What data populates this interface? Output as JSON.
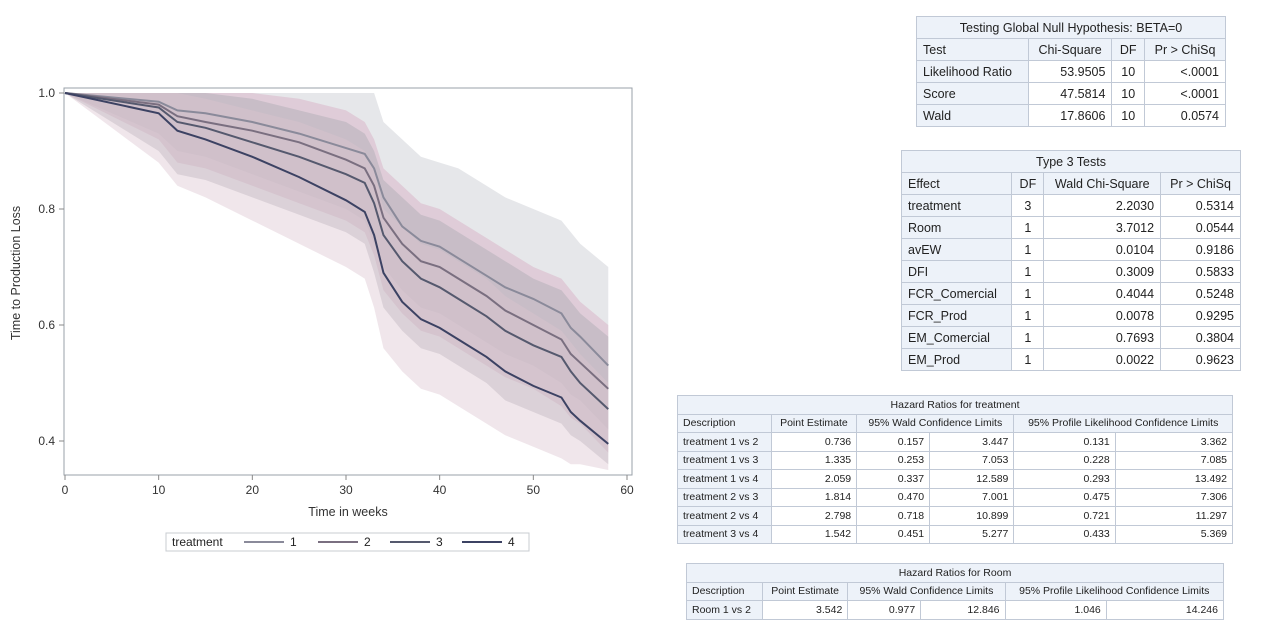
{
  "chart_data": {
    "type": "line",
    "title": "",
    "xlabel": "Time in weeks",
    "ylabel": "Time to Production Loss",
    "xlim": [
      0,
      60
    ],
    "ylim": [
      0.35,
      1.0
    ],
    "x_ticks": [
      "0",
      "10",
      "20",
      "30",
      "40",
      "50",
      "60"
    ],
    "y_ticks": [
      "0.4",
      "0.6",
      "0.8",
      "1.0"
    ],
    "legend_title": "treatment",
    "legend_position": "bottom",
    "x": [
      0,
      10,
      12,
      15,
      20,
      25,
      30,
      32,
      33,
      34,
      36,
      38,
      40,
      42,
      45,
      47,
      50,
      53,
      54,
      55,
      58
    ],
    "series": [
      {
        "name": "1",
        "values": [
          1.0,
          0.985,
          0.97,
          0.965,
          0.95,
          0.93,
          0.905,
          0.895,
          0.87,
          0.82,
          0.77,
          0.745,
          0.735,
          0.715,
          0.685,
          0.665,
          0.645,
          0.62,
          0.595,
          0.58,
          0.53
        ],
        "band": {
          "lower": [
            1.0,
            0.93,
            0.9,
            0.89,
            0.86,
            0.83,
            0.8,
            0.78,
            0.74,
            0.7,
            0.66,
            0.63,
            0.62,
            0.6,
            0.57,
            0.55,
            0.53,
            0.5,
            0.48,
            0.47,
            0.42
          ],
          "upper": [
            1.0,
            1.0,
            1.0,
            1.0,
            1.0,
            1.0,
            1.0,
            1.0,
            1.0,
            0.95,
            0.92,
            0.89,
            0.88,
            0.87,
            0.84,
            0.82,
            0.8,
            0.78,
            0.76,
            0.74,
            0.7
          ]
        }
      },
      {
        "name": "2",
        "values": [
          1.0,
          0.98,
          0.96,
          0.95,
          0.935,
          0.915,
          0.885,
          0.87,
          0.84,
          0.785,
          0.74,
          0.71,
          0.7,
          0.68,
          0.65,
          0.625,
          0.6,
          0.575,
          0.55,
          0.535,
          0.49
        ],
        "band": {
          "lower": [
            1.0,
            0.92,
            0.88,
            0.87,
            0.84,
            0.81,
            0.78,
            0.76,
            0.72,
            0.66,
            0.62,
            0.59,
            0.58,
            0.56,
            0.53,
            0.51,
            0.49,
            0.46,
            0.44,
            0.43,
            0.38
          ],
          "upper": [
            1.0,
            1.0,
            1.0,
            1.0,
            1.0,
            0.99,
            0.97,
            0.95,
            0.92,
            0.87,
            0.84,
            0.81,
            0.8,
            0.78,
            0.75,
            0.73,
            0.7,
            0.68,
            0.66,
            0.64,
            0.6
          ]
        }
      },
      {
        "name": "3",
        "values": [
          1.0,
          0.975,
          0.95,
          0.94,
          0.915,
          0.89,
          0.86,
          0.845,
          0.81,
          0.755,
          0.71,
          0.68,
          0.665,
          0.645,
          0.615,
          0.59,
          0.565,
          0.545,
          0.52,
          0.5,
          0.455
        ],
        "band": {
          "lower": [
            1.0,
            0.9,
            0.86,
            0.85,
            0.82,
            0.79,
            0.76,
            0.74,
            0.69,
            0.63,
            0.59,
            0.56,
            0.55,
            0.53,
            0.5,
            0.47,
            0.45,
            0.43,
            0.41,
            0.4,
            0.36
          ],
          "upper": [
            1.0,
            1.0,
            1.0,
            1.0,
            0.99,
            0.97,
            0.95,
            0.93,
            0.9,
            0.85,
            0.82,
            0.79,
            0.78,
            0.76,
            0.73,
            0.71,
            0.68,
            0.66,
            0.64,
            0.62,
            0.58
          ]
        }
      },
      {
        "name": "4",
        "values": [
          1.0,
          0.965,
          0.935,
          0.92,
          0.89,
          0.855,
          0.815,
          0.795,
          0.755,
          0.69,
          0.64,
          0.61,
          0.595,
          0.575,
          0.545,
          0.52,
          0.495,
          0.475,
          0.45,
          0.435,
          0.395
        ],
        "band": {
          "lower": [
            1.0,
            0.88,
            0.84,
            0.82,
            0.78,
            0.74,
            0.7,
            0.68,
            0.63,
            0.56,
            0.52,
            0.49,
            0.48,
            0.46,
            0.43,
            0.41,
            0.39,
            0.37,
            0.36,
            0.36,
            0.35
          ],
          "upper": [
            1.0,
            1.0,
            1.0,
            0.99,
            0.97,
            0.95,
            0.92,
            0.9,
            0.87,
            0.8,
            0.77,
            0.74,
            0.73,
            0.71,
            0.68,
            0.65,
            0.62,
            0.59,
            0.57,
            0.55,
            0.5
          ]
        }
      }
    ],
    "colors": {
      "lines": [
        "#8a8a9a",
        "#7a6f80",
        "#55596e",
        "#3c4263"
      ],
      "bands": [
        "#c4c6cc",
        "#d6a8bf",
        "#a9aab0",
        "#dcc4d0"
      ]
    }
  },
  "tables": {
    "global": {
      "caption": "Testing Global Null Hypothesis: BETA=0",
      "headers": [
        "Test",
        "Chi-Square",
        "DF",
        "Pr > ChiSq"
      ],
      "rows": [
        [
          "Likelihood Ratio",
          "53.9505",
          "10",
          "<.0001"
        ],
        [
          "Score",
          "47.5814",
          "10",
          "<.0001"
        ],
        [
          "Wald",
          "17.8606",
          "10",
          "0.0574"
        ]
      ]
    },
    "type3": {
      "caption": "Type 3 Tests",
      "headers": [
        "Effect",
        "DF",
        "Wald Chi-Square",
        "Pr > ChiSq"
      ],
      "rows": [
        [
          "treatment",
          "3",
          "2.2030",
          "0.5314"
        ],
        [
          "Room",
          "1",
          "3.7012",
          "0.0544"
        ],
        [
          "avEW",
          "1",
          "0.0104",
          "0.9186"
        ],
        [
          "DFI",
          "1",
          "0.3009",
          "0.5833"
        ],
        [
          "FCR_Comercial",
          "1",
          "0.4044",
          "0.5248"
        ],
        [
          "FCR_Prod",
          "1",
          "0.0078",
          "0.9295"
        ],
        [
          "EM_Comercial",
          "1",
          "0.7693",
          "0.3804"
        ],
        [
          "EM_Prod",
          "1",
          "0.0022",
          "0.9623"
        ]
      ]
    },
    "hr_treatment": {
      "caption": "Hazard Ratios for treatment",
      "headers": [
        "Description",
        "Point Estimate",
        "95% Wald Confidence Limits",
        "95% Profile Likelihood Confidence Limits"
      ],
      "rows": [
        [
          "treatment 1 vs 2",
          "0.736",
          "0.157",
          "3.447",
          "0.131",
          "3.362"
        ],
        [
          "treatment 1 vs 3",
          "1.335",
          "0.253",
          "7.053",
          "0.228",
          "7.085"
        ],
        [
          "treatment 1 vs 4",
          "2.059",
          "0.337",
          "12.589",
          "0.293",
          "13.492"
        ],
        [
          "treatment 2 vs 3",
          "1.814",
          "0.470",
          "7.001",
          "0.475",
          "7.306"
        ],
        [
          "treatment 2 vs 4",
          "2.798",
          "0.718",
          "10.899",
          "0.721",
          "11.297"
        ],
        [
          "treatment 3 vs 4",
          "1.542",
          "0.451",
          "5.277",
          "0.433",
          "5.369"
        ]
      ]
    },
    "hr_room": {
      "caption": "Hazard Ratios for Room",
      "headers": [
        "Description",
        "Point Estimate",
        "95% Wald Confidence Limits",
        "95% Profile Likelihood Confidence Limits"
      ],
      "rows": [
        [
          "Room 1 vs 2",
          "3.542",
          "0.977",
          "12.846",
          "1.046",
          "14.246"
        ]
      ]
    }
  }
}
